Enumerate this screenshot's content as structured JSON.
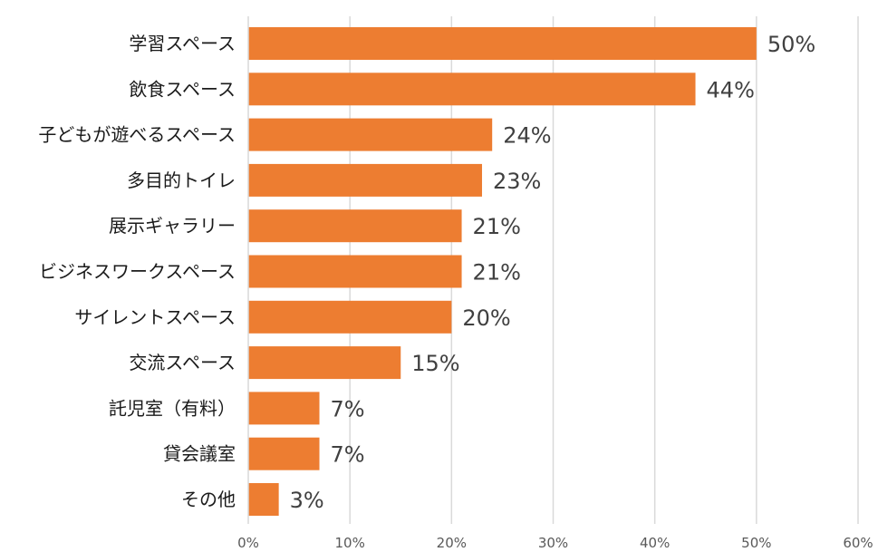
{
  "chart_data": {
    "type": "bar",
    "orientation": "horizontal",
    "title": "",
    "xlabel": "",
    "ylabel": "",
    "categories": [
      "学習スペース",
      "飲食スペース",
      "子どもが遊べるスペース",
      "多目的トイレ",
      "展示ギャラリー",
      "ビジネスワークスペース",
      "サイレントスペース",
      "交流スペース",
      "託児室（有料）",
      "貸会議室",
      "その他"
    ],
    "values": [
      50,
      44,
      24,
      23,
      21,
      21,
      20,
      15,
      7,
      7,
      3
    ],
    "data_labels": [
      "50%",
      "44%",
      "24%",
      "23%",
      "21%",
      "21%",
      "20%",
      "15%",
      "7%",
      "7%",
      "3%"
    ],
    "xlim": [
      0,
      60
    ],
    "xticks": [
      0,
      10,
      20,
      30,
      40,
      50,
      60
    ],
    "xtick_labels": [
      "0%",
      "10%",
      "20%",
      "30%",
      "40%",
      "50%",
      "60%"
    ],
    "grid": "vertical",
    "legend": "none",
    "bar_color": "#ED7D31",
    "grid_color": "#D9D9D9"
  }
}
